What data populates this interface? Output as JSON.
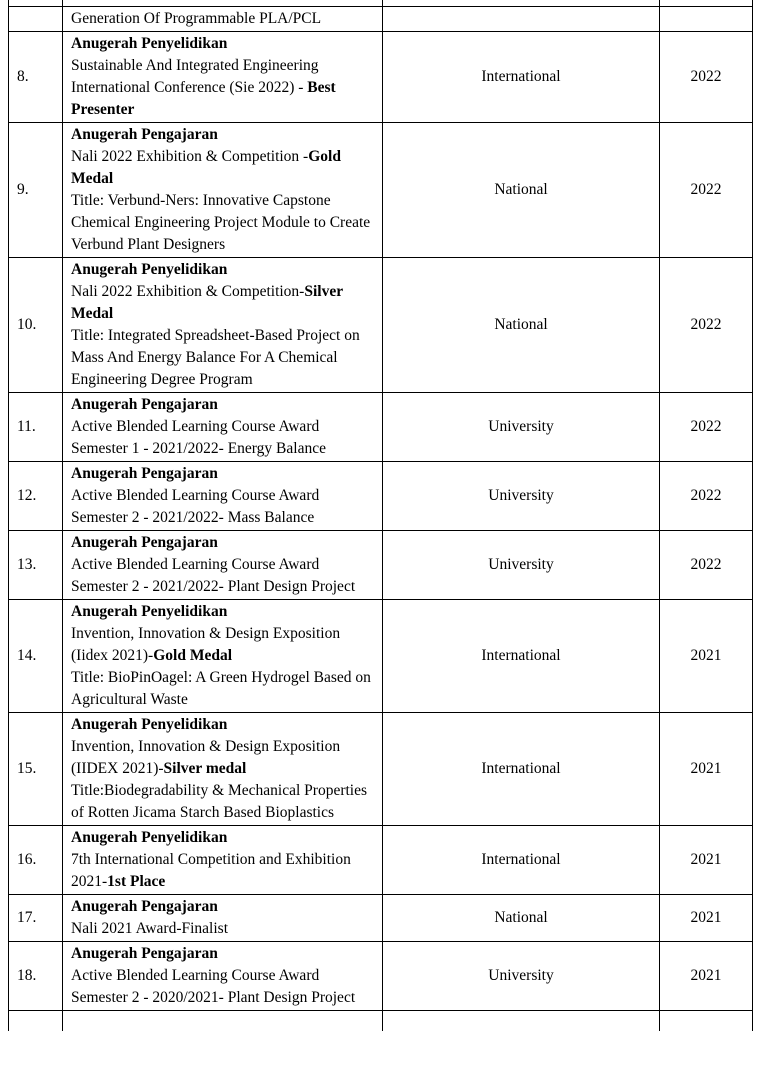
{
  "colors": {
    "background": "#ffffff",
    "text": "#000000",
    "table_border": "#000000"
  },
  "table": {
    "rows": [
      {
        "num": "",
        "paragraphs": [
          {
            "runs": [
              {
                "t": "Generation Of Programmable PLA/PCL",
                "b": false
              }
            ]
          }
        ],
        "level": "",
        "year": ""
      },
      {
        "num": "8.",
        "paragraphs": [
          {
            "runs": [
              {
                "t": "Anugerah Penyelidikan",
                "b": true
              }
            ]
          },
          {
            "runs": [
              {
                "t": "Sustainable And Integrated Engineering International Conference (Sie 2022) - ",
                "b": false
              },
              {
                "t": "Best Presenter",
                "b": true
              }
            ]
          }
        ],
        "level": "International",
        "year": "2022"
      },
      {
        "num": "9.",
        "paragraphs": [
          {
            "runs": [
              {
                "t": "Anugerah Pengajaran",
                "b": true
              }
            ]
          },
          {
            "runs": [
              {
                "t": "Nali 2022 Exhibition & Competition -",
                "b": false
              },
              {
                "t": "Gold Medal",
                "b": true
              }
            ]
          },
          {
            "runs": [
              {
                "t": "Title: Verbund-Ners: Innovative Capstone Chemical Engineering Project Module to Create Verbund Plant Designers",
                "b": false
              }
            ]
          }
        ],
        "level": "National",
        "year": "2022"
      },
      {
        "num": "10.",
        "paragraphs": [
          {
            "runs": [
              {
                "t": "Anugerah Penyelidikan",
                "b": true
              }
            ]
          },
          {
            "runs": [
              {
                "t": "Nali 2022 Exhibition & Competition-",
                "b": false
              },
              {
                "t": "Silver Medal",
                "b": true
              }
            ]
          },
          {
            "runs": [
              {
                "t": "Title: Integrated Spreadsheet-Based Project on Mass And Energy Balance For A Chemical Engineering Degree Program",
                "b": false
              }
            ]
          }
        ],
        "level": "National",
        "year": "2022"
      },
      {
        "num": "11.",
        "paragraphs": [
          {
            "runs": [
              {
                "t": "Anugerah Pengajaran",
                "b": true
              }
            ]
          },
          {
            "runs": [
              {
                "t": "Active Blended Learning Course Award Semester 1 - 2021/2022- Energy Balance",
                "b": false
              }
            ]
          }
        ],
        "level": "University",
        "year": "2022"
      },
      {
        "num": "12.",
        "paragraphs": [
          {
            "runs": [
              {
                "t": "Anugerah Pengajaran",
                "b": true
              }
            ]
          },
          {
            "runs": [
              {
                "t": "Active Blended Learning Course Award Semester 2 - 2021/2022- Mass Balance",
                "b": false
              }
            ]
          }
        ],
        "level": "University",
        "year": "2022"
      },
      {
        "num": "13.",
        "paragraphs": [
          {
            "runs": [
              {
                "t": "Anugerah Pengajaran",
                "b": true
              }
            ]
          },
          {
            "runs": [
              {
                "t": "Active Blended Learning Course Award Semester 2 - 2021/2022- Plant Design Project",
                "b": false
              }
            ]
          }
        ],
        "level": "University",
        "year": "2022"
      },
      {
        "num": "14.",
        "paragraphs": [
          {
            "runs": [
              {
                "t": "Anugerah Penyelidikan",
                "b": true
              }
            ]
          },
          {
            "runs": [
              {
                "t": "Invention, Innovation & Design Exposition (Iidex 2021)-",
                "b": false
              },
              {
                "t": "Gold Medal",
                "b": true
              }
            ]
          },
          {
            "runs": [
              {
                "t": "Title: BioPinOagel: A Green Hydrogel Based on Agricultural Waste",
                "b": false
              }
            ]
          }
        ],
        "level": "International",
        "year": "2021"
      },
      {
        "num": "15.",
        "paragraphs": [
          {
            "runs": [
              {
                "t": "Anugerah Penyelidikan",
                "b": true
              }
            ]
          },
          {
            "runs": [
              {
                "t": "Invention, Innovation & Design Exposition (IIDEX 2021)-",
                "b": false
              },
              {
                "t": "Silver medal",
                "b": true
              }
            ]
          },
          {
            "runs": [
              {
                "t": "Title:Biodegradability & Mechanical Properties of Rotten Jicama Starch Based Bioplastics",
                "b": false
              }
            ]
          }
        ],
        "level": "International",
        "year": "2021"
      },
      {
        "num": "16.",
        "paragraphs": [
          {
            "runs": [
              {
                "t": "Anugerah Penyelidikan",
                "b": true
              }
            ]
          },
          {
            "runs": [
              {
                "t": "7th International Competition and Exhibition 2021-",
                "b": false
              },
              {
                "t": "1st Place",
                "b": true
              }
            ]
          }
        ],
        "level": "International",
        "year": "2021"
      },
      {
        "num": "17.",
        "paragraphs": [
          {
            "runs": [
              {
                "t": "Anugerah Pengajaran",
                "b": true
              }
            ]
          },
          {
            "runs": [
              {
                "t": "Nali 2021 Award-Finalist",
                "b": false
              }
            ]
          }
        ],
        "level": "National",
        "year": "2021"
      },
      {
        "num": "18.",
        "paragraphs": [
          {
            "runs": [
              {
                "t": "Anugerah Pengajaran",
                "b": true
              }
            ]
          },
          {
            "runs": [
              {
                "t": "Active Blended Learning Course Award Semester 2 - 2020/2021- Plant Design Project",
                "b": false
              }
            ]
          }
        ],
        "level": "University",
        "year": "2021"
      }
    ]
  }
}
